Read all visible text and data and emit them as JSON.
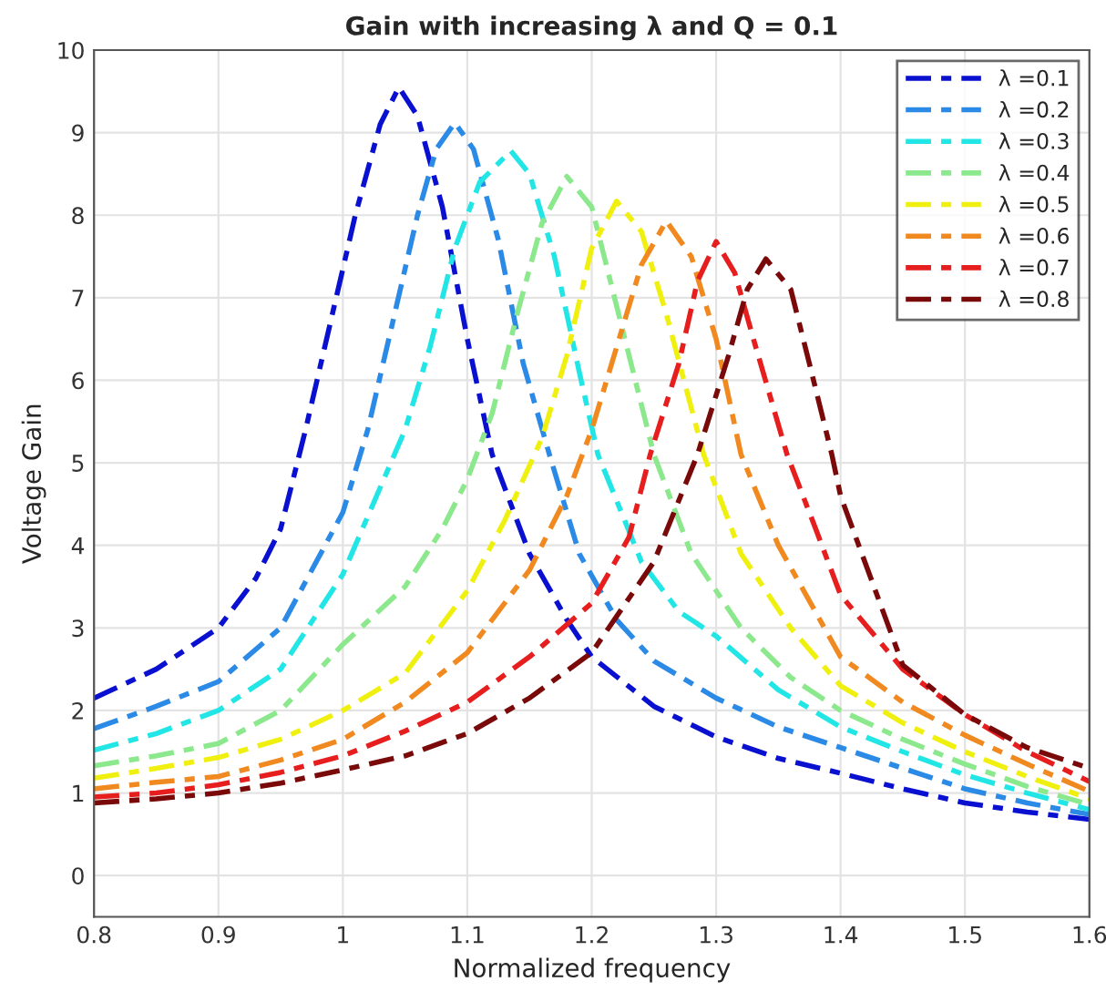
{
  "chart_data": {
    "type": "line",
    "title": "Gain with increasing λ and Q = 0.1",
    "xlabel": "Normalized frequency",
    "ylabel": "Voltage Gain",
    "xlim": [
      0.8,
      1.6
    ],
    "xticks": [
      0.8,
      0.9,
      1,
      1.1,
      1.2,
      1.3,
      1.4,
      1.5,
      1.6
    ],
    "ylim": [
      -0.5,
      10
    ],
    "yticks": [
      0,
      1,
      2,
      3,
      4,
      5,
      6,
      7,
      8,
      9,
      10
    ],
    "grid": true,
    "legend": "top right",
    "line_style": "dashed",
    "marker": "none",
    "series": [
      {
        "name": "λ =0.1",
        "color": "#0a10d0",
        "x": [
          0.8,
          0.85,
          0.9,
          0.93,
          0.95,
          0.97,
          0.99,
          1.01,
          1.03,
          1.045,
          1.06,
          1.08,
          1.1,
          1.12,
          1.15,
          1.18,
          1.2,
          1.25,
          1.3,
          1.35,
          1.4,
          1.45,
          1.5,
          1.55,
          1.6
        ],
        "values": [
          2.15,
          2.5,
          3.0,
          3.6,
          4.2,
          5.4,
          6.7,
          8.0,
          9.1,
          9.55,
          9.2,
          8.1,
          6.5,
          5.1,
          3.9,
          3.1,
          2.65,
          2.05,
          1.68,
          1.42,
          1.24,
          1.05,
          0.88,
          0.77,
          0.68
        ]
      },
      {
        "name": "λ =0.2",
        "color": "#2a8ae6",
        "x": [
          0.8,
          0.85,
          0.9,
          0.95,
          1.0,
          1.02,
          1.04,
          1.06,
          1.075,
          1.09,
          1.105,
          1.125,
          1.145,
          1.166,
          1.19,
          1.22,
          1.25,
          1.3,
          1.35,
          1.4,
          1.45,
          1.5,
          1.55,
          1.6
        ],
        "values": [
          1.78,
          2.05,
          2.35,
          3.0,
          4.4,
          5.4,
          6.7,
          8.0,
          8.8,
          9.12,
          8.8,
          7.7,
          6.2,
          5.1,
          3.9,
          3.1,
          2.6,
          2.15,
          1.8,
          1.55,
          1.3,
          1.05,
          0.88,
          0.74
        ]
      },
      {
        "name": "λ =0.3",
        "color": "#22e6e6",
        "x": [
          0.8,
          0.85,
          0.9,
          0.95,
          1.0,
          1.05,
          1.07,
          1.09,
          1.11,
          1.135,
          1.15,
          1.17,
          1.19,
          1.205,
          1.24,
          1.27,
          1.3,
          1.35,
          1.4,
          1.45,
          1.5,
          1.55,
          1.6
        ],
        "values": [
          1.52,
          1.72,
          2.0,
          2.5,
          3.65,
          5.4,
          6.4,
          7.6,
          8.4,
          8.78,
          8.5,
          7.5,
          6.1,
          5.1,
          3.8,
          3.2,
          2.9,
          2.25,
          1.8,
          1.5,
          1.22,
          1.0,
          0.8
        ]
      },
      {
        "name": "λ =0.4",
        "color": "#8ce88c",
        "x": [
          0.8,
          0.85,
          0.9,
          0.95,
          1.0,
          1.05,
          1.08,
          1.1,
          1.12,
          1.14,
          1.16,
          1.18,
          1.2,
          1.22,
          1.25,
          1.28,
          1.32,
          1.36,
          1.4,
          1.45,
          1.5,
          1.55,
          1.6
        ],
        "values": [
          1.33,
          1.45,
          1.6,
          2.0,
          2.8,
          3.5,
          4.2,
          4.8,
          5.6,
          6.8,
          7.9,
          8.47,
          8.1,
          6.9,
          5.1,
          3.9,
          3.0,
          2.4,
          2.0,
          1.65,
          1.35,
          1.08,
          0.86
        ]
      },
      {
        "name": "λ =0.5",
        "color": "#f0f010",
        "x": [
          0.8,
          0.85,
          0.9,
          0.95,
          1.0,
          1.05,
          1.1,
          1.13,
          1.16,
          1.18,
          1.2,
          1.22,
          1.24,
          1.26,
          1.29,
          1.32,
          1.36,
          1.4,
          1.45,
          1.5,
          1.55,
          1.6
        ],
        "values": [
          1.18,
          1.3,
          1.43,
          1.65,
          2.0,
          2.45,
          3.45,
          4.3,
          5.3,
          6.3,
          7.6,
          8.17,
          7.8,
          6.8,
          5.1,
          3.9,
          3.0,
          2.3,
          1.85,
          1.5,
          1.2,
          0.93
        ]
      },
      {
        "name": "λ =0.6",
        "color": "#f08a20",
        "x": [
          0.8,
          0.85,
          0.9,
          0.95,
          1.0,
          1.05,
          1.1,
          1.15,
          1.18,
          1.2,
          1.22,
          1.24,
          1.26,
          1.28,
          1.3,
          1.32,
          1.35,
          1.4,
          1.45,
          1.5,
          1.55,
          1.6
        ],
        "values": [
          1.05,
          1.13,
          1.2,
          1.4,
          1.65,
          2.1,
          2.7,
          3.7,
          4.6,
          5.4,
          6.4,
          7.4,
          7.93,
          7.5,
          6.5,
          5.1,
          4.0,
          2.65,
          2.1,
          1.7,
          1.35,
          1.02
        ]
      },
      {
        "name": "λ =0.7",
        "color": "#e61e1e",
        "x": [
          0.8,
          0.85,
          0.9,
          0.95,
          1.0,
          1.05,
          1.1,
          1.15,
          1.2,
          1.23,
          1.247,
          1.27,
          1.285,
          1.3,
          1.315,
          1.33,
          1.357,
          1.38,
          1.4,
          1.45,
          1.5,
          1.55,
          1.6
        ],
        "values": [
          0.95,
          1.0,
          1.1,
          1.25,
          1.45,
          1.75,
          2.1,
          2.65,
          3.3,
          4.1,
          5.1,
          6.2,
          7.2,
          7.68,
          7.3,
          6.5,
          5.1,
          4.2,
          3.4,
          2.5,
          1.95,
          1.5,
          1.14
        ]
      },
      {
        "name": "λ =0.8",
        "color": "#7a0a0a",
        "x": [
          0.8,
          0.85,
          0.9,
          0.95,
          1.0,
          1.05,
          1.1,
          1.15,
          1.2,
          1.25,
          1.285,
          1.31,
          1.325,
          1.34,
          1.36,
          1.375,
          1.393,
          1.4,
          1.45,
          1.5,
          1.55,
          1.6
        ],
        "values": [
          0.88,
          0.93,
          1.0,
          1.12,
          1.28,
          1.45,
          1.72,
          2.15,
          2.7,
          3.8,
          5.1,
          6.3,
          7.1,
          7.47,
          7.1,
          6.2,
          5.1,
          4.6,
          2.55,
          1.95,
          1.55,
          1.3
        ]
      }
    ]
  }
}
